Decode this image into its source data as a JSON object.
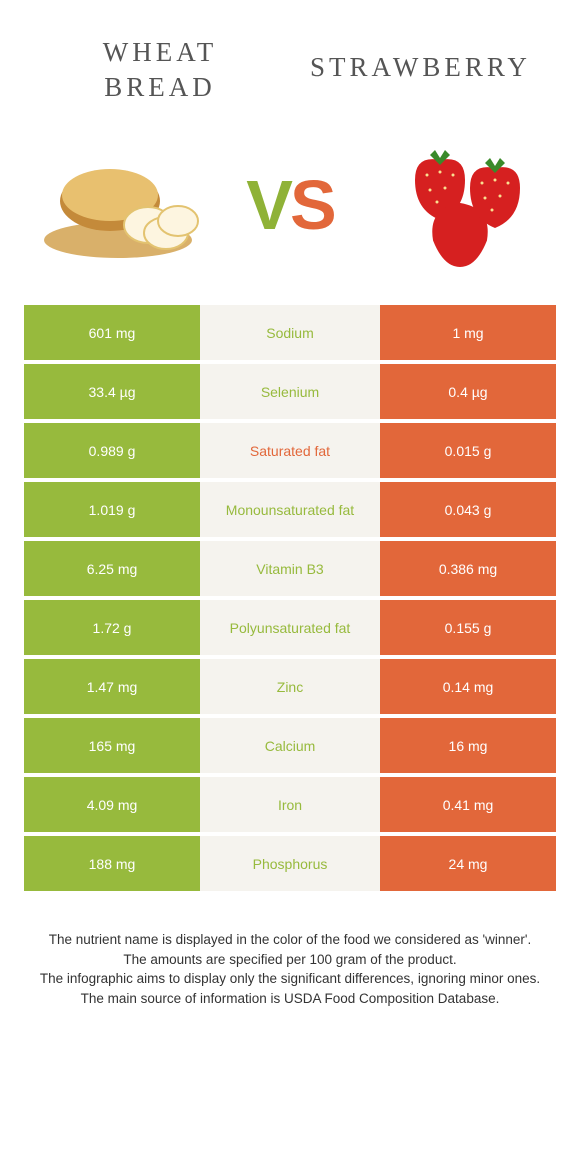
{
  "header": {
    "left_title_line1": "WHEAT",
    "left_title_line2": "BREAD",
    "right_title": "STRAWBERRY",
    "vs_v": "V",
    "vs_s": "S"
  },
  "colors": {
    "left_bg": "#97ba3d",
    "right_bg": "#e2673a",
    "mid_bg": "#f5f3ee",
    "left_text": "#97ba3d",
    "right_text": "#e2673a",
    "row_gap": 4
  },
  "table": {
    "type": "comparison-table",
    "rows": [
      {
        "left": "601 mg",
        "label": "Sodium",
        "right": "1 mg",
        "winner": "left"
      },
      {
        "left": "33.4 µg",
        "label": "Selenium",
        "right": "0.4 µg",
        "winner": "left"
      },
      {
        "left": "0.989 g",
        "label": "Saturated fat",
        "right": "0.015 g",
        "winner": "right"
      },
      {
        "left": "1.019 g",
        "label": "Monounsaturated fat",
        "right": "0.043 g",
        "winner": "left"
      },
      {
        "left": "6.25 mg",
        "label": "Vitamin B3",
        "right": "0.386 mg",
        "winner": "left"
      },
      {
        "left": "1.72 g",
        "label": "Polyunsaturated fat",
        "right": "0.155 g",
        "winner": "left"
      },
      {
        "left": "1.47 mg",
        "label": "Zinc",
        "right": "0.14 mg",
        "winner": "left"
      },
      {
        "left": "165 mg",
        "label": "Calcium",
        "right": "16 mg",
        "winner": "left"
      },
      {
        "left": "4.09 mg",
        "label": "Iron",
        "right": "0.41 mg",
        "winner": "left"
      },
      {
        "left": "188 mg",
        "label": "Phosphorus",
        "right": "24 mg",
        "winner": "left"
      }
    ]
  },
  "footer": {
    "line1": "The nutrient name is displayed in the color of the food we considered as 'winner'.",
    "line2": "The amounts are specified per 100 gram of the product.",
    "line3": "The infographic aims to display only the significant differences, ignoring minor ones.",
    "line4": "The main source of information is USDA Food Composition Database."
  }
}
